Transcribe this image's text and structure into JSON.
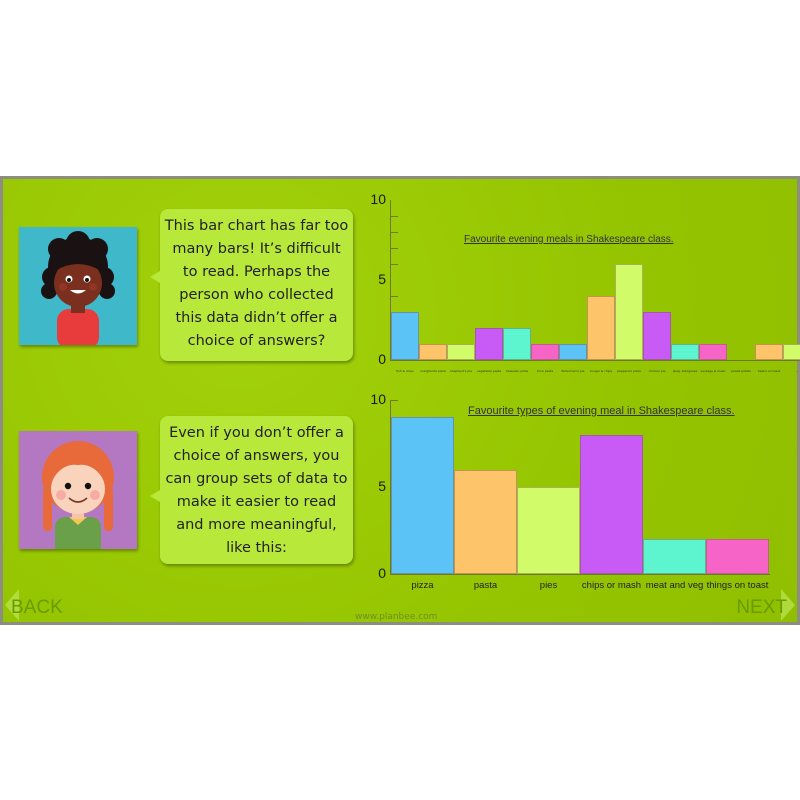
{
  "slide": {
    "speech": [
      {
        "character": "girl-curly-hair",
        "text": "This bar chart has far too many bars! It’s difficult to read. Perhaps the person who collected this data didn’t offer a choice of answers?"
      },
      {
        "character": "girl-red-plaits",
        "text": "Even if you don’t offer a choice of answers, you can group sets of data to make it easier to read and more meaningful, like this:"
      }
    ],
    "nav": {
      "back": "BACK",
      "next": "NEXT"
    },
    "footer": "www.planbee.com",
    "colors": {
      "background": "#98c900",
      "bubble": "#b8e83a",
      "blue": "#5bc3f5",
      "orange": "#fdc46a",
      "lime": "#d2fb6a",
      "purple": "#c85af5",
      "aqua": "#5cf5cf",
      "pink": "#f764c8"
    }
  },
  "chart_data": [
    {
      "type": "bar",
      "title": "Favourite evening meals in Shakespeare class.",
      "xlabel": "",
      "ylabel": "",
      "ylim": [
        0,
        10
      ],
      "yticks": [
        "0",
        "5",
        "10"
      ],
      "grid": false,
      "categories": [
        "fish & chips",
        "margherita pizza",
        "shepherd's pie",
        "vegetable pasta",
        "hawaiian pizza",
        "tuna pasta",
        "fisherman's pie",
        "burger & chips",
        "pepperoni pizza",
        "chicken pie",
        "spag. bolognese",
        "sausage & mash",
        "jacket potato",
        "beans on toast",
        "..."
      ],
      "values": [
        3,
        1,
        1,
        2,
        2,
        1,
        1,
        4,
        6,
        3,
        1,
        1,
        0,
        1,
        1
      ],
      "bar_colors": [
        "#5bc3f5",
        "#fdc46a",
        "#d2fb6a",
        "#c85af5",
        "#5cf5cf",
        "#f764c8",
        "#5bc3f5",
        "#fdc46a",
        "#d2fb6a",
        "#c85af5",
        "#5cf5cf",
        "#f764c8",
        "#5bc3f5",
        "#fdc46a",
        "#d2fb6a"
      ]
    },
    {
      "type": "bar",
      "title": "Favourite types of evening meal in Shakespeare class.",
      "xlabel": "",
      "ylabel": "",
      "ylim": [
        0,
        10
      ],
      "yticks": [
        "0",
        "5",
        "10"
      ],
      "grid": false,
      "categories": [
        "pizza",
        "pasta",
        "pies",
        "chips or mash",
        "meat and veg",
        "things on toast"
      ],
      "values": [
        9,
        6,
        5,
        8,
        2,
        2
      ],
      "bar_colors": [
        "#5bc3f5",
        "#fdc46a",
        "#d2fb6a",
        "#c85af5",
        "#5cf5cf",
        "#f764c8"
      ]
    }
  ]
}
